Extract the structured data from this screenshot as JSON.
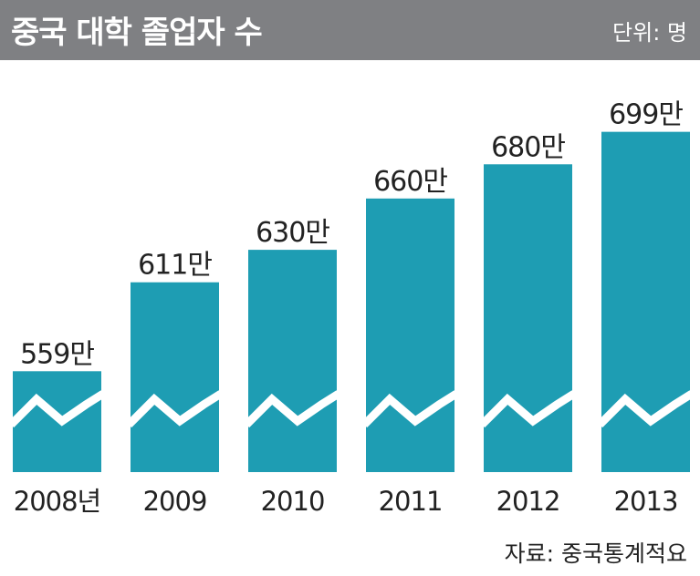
{
  "header": {
    "title": "중국 대학 졸업자 수",
    "unit": "단위: 명"
  },
  "source": "자료: 중국통계적요",
  "colors": {
    "bar": "#1e9db3",
    "header_bg": "#7f8083",
    "break_line": "#ffffff"
  },
  "chart_data": {
    "type": "bar",
    "categories": [
      "2008년",
      "2009",
      "2010",
      "2011",
      "2012",
      "2013"
    ],
    "values": [
      559,
      611,
      630,
      660,
      680,
      699
    ],
    "value_labels": [
      "559만",
      "611만",
      "630만",
      "660만",
      "680만",
      "699만"
    ],
    "value_unit": "만",
    "axis_break": true,
    "grid": false,
    "legend": "none",
    "ylim": [
      500,
      710
    ]
  }
}
